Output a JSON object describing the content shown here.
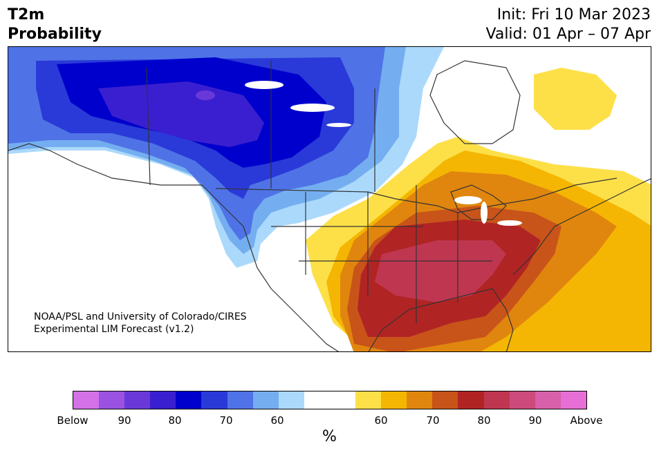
{
  "title": {
    "line1": "T2m",
    "line2": "Probability",
    "init": "Init: Fri 10 Mar 2023",
    "valid": "Valid: 01 Apr – 07 Apr"
  },
  "credit": {
    "line1": "NOAA/PSL and University of Colorado/CIRES",
    "line2": "Experimental LIM Forecast (v1.2)"
  },
  "colorbar": {
    "unit": "%",
    "colors": [
      "#d470e8",
      "#9a52e0",
      "#6a38d8",
      "#3a1fd0",
      "#0000cc",
      "#2a3ad8",
      "#4f73e6",
      "#74aef0",
      "#abd9fb",
      "#ffffff",
      "#ffffff",
      "#fde048",
      "#f4b603",
      "#e0860e",
      "#c85419",
      "#b12424",
      "#bf3650",
      "#cc4a7c",
      "#d860aa",
      "#e66fd6"
    ],
    "tick_labels": [
      "Below",
      "90",
      "80",
      "70",
      "60",
      "60",
      "70",
      "80",
      "90",
      "Above"
    ]
  },
  "map_colors": {
    "below_90": "#6a38d8",
    "below_80": "#3a1fd0",
    "below_75": "#0000cc",
    "below_70": "#2a3ad8",
    "below_65": "#4f73e6",
    "below_60": "#74aef0",
    "below_55": "#abd9fb",
    "above_55": "#fde048",
    "above_60": "#f4b603",
    "above_65": "#e0860e",
    "above_70": "#c85419",
    "above_75": "#b12424",
    "above_80": "#bf3650",
    "land_outline": "#333333"
  }
}
